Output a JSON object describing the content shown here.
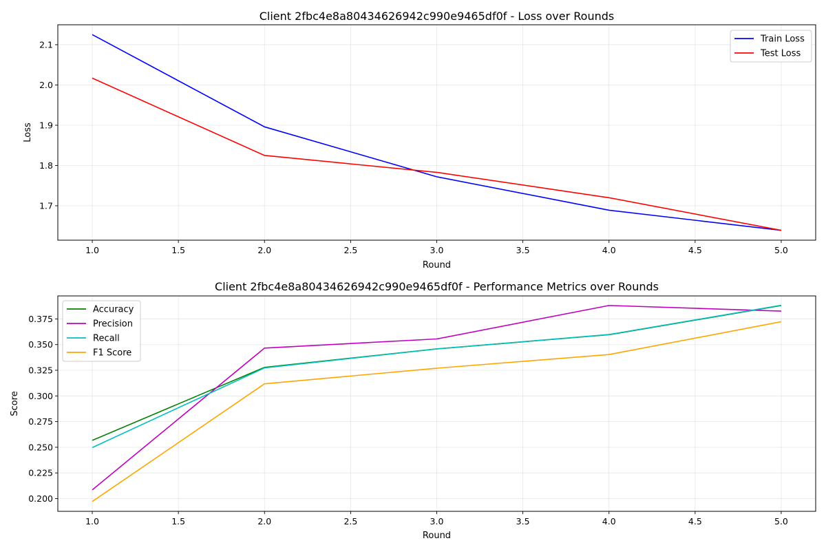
{
  "chart_data": [
    {
      "type": "line",
      "title": "Client 2fbc4e8a80434626942c990e9465df0f - Loss over Rounds",
      "xlabel": "Round",
      "ylabel": "Loss",
      "xlim": [
        0.8,
        5.2
      ],
      "ylim": [
        1.6145,
        2.1495
      ],
      "x_ticks": [
        1.0,
        1.5,
        2.0,
        2.5,
        3.0,
        3.5,
        4.0,
        4.5,
        5.0
      ],
      "x_tick_labels": [
        "1.0",
        "1.5",
        "2.0",
        "2.5",
        "3.0",
        "3.5",
        "4.0",
        "4.5",
        "5.0"
      ],
      "y_ticks": [
        1.7,
        1.8,
        1.9,
        2.0,
        2.1
      ],
      "y_tick_labels": [
        "1.7",
        "1.8",
        "1.9",
        "2.0",
        "2.1"
      ],
      "grid": true,
      "legend_position": "top-right",
      "x": [
        1,
        2,
        3,
        4,
        5
      ],
      "series": [
        {
          "name": "Train Loss",
          "color": "#0000ff",
          "values": [
            2.125,
            1.896,
            1.772,
            1.689,
            1.639
          ]
        },
        {
          "name": "Test Loss",
          "color": "#ff0000",
          "values": [
            2.017,
            1.825,
            1.783,
            1.72,
            1.639
          ]
        }
      ]
    },
    {
      "type": "line",
      "title": "Client 2fbc4e8a80434626942c990e9465df0f - Performance Metrics over Rounds",
      "xlabel": "Round",
      "ylabel": "Score",
      "xlim": [
        0.8,
        5.2
      ],
      "ylim": [
        0.1876,
        0.3974
      ],
      "x_ticks": [
        1.0,
        1.5,
        2.0,
        2.5,
        3.0,
        3.5,
        4.0,
        4.5,
        5.0
      ],
      "x_tick_labels": [
        "1.0",
        "1.5",
        "2.0",
        "2.5",
        "3.0",
        "3.5",
        "4.0",
        "4.5",
        "5.0"
      ],
      "y_ticks": [
        0.2,
        0.225,
        0.25,
        0.275,
        0.3,
        0.325,
        0.35,
        0.375
      ],
      "y_tick_labels": [
        "0.200",
        "0.225",
        "0.250",
        "0.275",
        "0.300",
        "0.325",
        "0.350",
        "0.375"
      ],
      "grid": true,
      "legend_position": "top-left",
      "x": [
        1,
        2,
        3,
        4,
        5
      ],
      "series": [
        {
          "name": "Accuracy",
          "color": "#008000",
          "values": [
            0.2567,
            0.3278,
            0.3458,
            0.3596,
            0.388
          ]
        },
        {
          "name": "Precision",
          "color": "#bf00bf",
          "values": [
            0.2085,
            0.3466,
            0.3555,
            0.3881,
            0.3826
          ]
        },
        {
          "name": "Recall",
          "color": "#00bfbf",
          "values": [
            0.2497,
            0.3273,
            0.3458,
            0.3598,
            0.3883
          ]
        },
        {
          "name": "F1 Score",
          "color": "#ffa500",
          "values": [
            0.1972,
            0.3118,
            0.327,
            0.3403,
            0.3723
          ]
        }
      ]
    }
  ]
}
